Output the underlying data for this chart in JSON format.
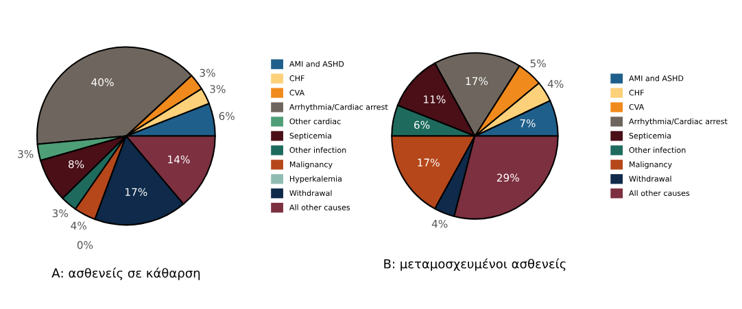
{
  "chart_data": [
    {
      "type": "pie",
      "title": "Α: ασθενείς σε κάθαρση",
      "legend": "right",
      "categories": [
        "AMI and ASHD",
        "CHF",
        "CVA",
        "Arrhythmia/Cardiac arrest",
        "Other cardiac",
        "Septicemia",
        "Other infection",
        "Malignancy",
        "Hyperkalemia",
        "Withdrawal",
        "All other causes"
      ],
      "values": [
        6,
        3,
        3,
        40,
        3,
        8,
        3,
        4,
        0,
        17,
        14
      ],
      "value_labels": [
        "6%",
        "3%",
        "3%",
        "40%",
        "3%",
        "8%",
        "3%",
        "4%",
        "0%",
        "17%",
        "14%"
      ],
      "colors": [
        "#1f5f8b",
        "#fdd17a",
        "#f08a1c",
        "#6e665e",
        "#4e9e78",
        "#4a0f17",
        "#1e6b5e",
        "#b5471a",
        "#8fbcb0",
        "#0f2a4a",
        "#7d3040"
      ]
    },
    {
      "type": "pie",
      "title": "Β: μεταμοσχευμένοι ασθενείς",
      "legend": "right",
      "categories": [
        "AMI and ASHD",
        "CHF",
        "CVA",
        "Arrhythmia/Cardiac arrest",
        "Septicemia",
        "Other infection",
        "Malignancy",
        "Withdrawal",
        "All other causes"
      ],
      "values": [
        7,
        4,
        5,
        17,
        11,
        6,
        17,
        4,
        29
      ],
      "value_labels": [
        "7%",
        "4%",
        "5%",
        "17%",
        "11%",
        "6%",
        "17%",
        "4%",
        "29%"
      ],
      "colors": [
        "#1f5f8b",
        "#fdd17a",
        "#f08a1c",
        "#6e665e",
        "#4a0f17",
        "#1e6b5e",
        "#b5471a",
        "#0f2a4a",
        "#7d3040"
      ]
    }
  ]
}
